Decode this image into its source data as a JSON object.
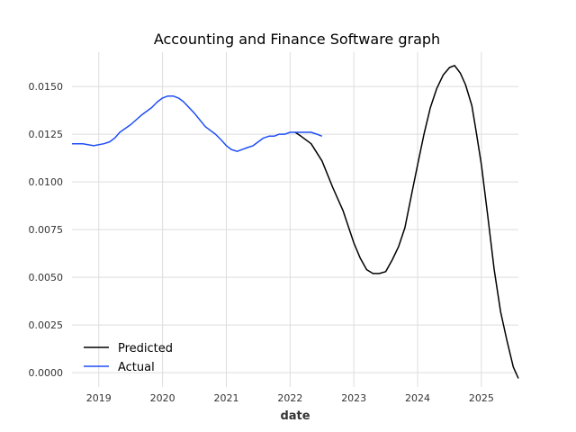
{
  "chart_data": {
    "type": "line",
    "title": "Accounting and Finance Software graph",
    "xlabel": "date",
    "ylabel": "",
    "xlim": [
      2018.58,
      2025.58
    ],
    "ylim": [
      -0.00075,
      0.0168
    ],
    "grid": true,
    "legend_position": "bottom-left",
    "x_ticks": [
      2019,
      2020,
      2021,
      2022,
      2023,
      2024,
      2025
    ],
    "x_tick_labels": [
      "2019",
      "2020",
      "2021",
      "2022",
      "2023",
      "2024",
      "2025"
    ],
    "y_ticks": [
      0.0,
      0.0025,
      0.005,
      0.0075,
      0.01,
      0.0125,
      0.015
    ],
    "y_tick_labels": [
      "0.0000",
      "0.0025",
      "0.0050",
      "0.0075",
      "0.0100",
      "0.0125",
      "0.0150"
    ],
    "series": [
      {
        "name": "Predicted",
        "color": "#000000",
        "x": [
          2022.08,
          2022.17,
          2022.33,
          2022.5,
          2022.67,
          2022.83,
          2023.0,
          2023.1,
          2023.2,
          2023.3,
          2023.4,
          2023.5,
          2023.6,
          2023.7,
          2023.8,
          2023.92,
          2024.0,
          2024.1,
          2024.2,
          2024.3,
          2024.4,
          2024.5,
          2024.58,
          2024.67,
          2024.75,
          2024.85,
          2024.92,
          2025.0,
          2025.1,
          2025.2,
          2025.3,
          2025.4,
          2025.5,
          2025.58
        ],
        "y": [
          0.0126,
          0.0124,
          0.012,
          0.0111,
          0.0097,
          0.0085,
          0.0068,
          0.006,
          0.0054,
          0.0052,
          0.0052,
          0.0053,
          0.0059,
          0.0066,
          0.0076,
          0.0096,
          0.0109,
          0.0125,
          0.0139,
          0.0149,
          0.0156,
          0.016,
          0.0161,
          0.0157,
          0.0151,
          0.014,
          0.0126,
          0.0109,
          0.0082,
          0.0054,
          0.0032,
          0.0017,
          0.0003,
          -0.0003
        ]
      },
      {
        "name": "Actual",
        "color": "#1f4ef5",
        "x": [
          2018.58,
          2018.75,
          2018.92,
          2019.08,
          2019.17,
          2019.25,
          2019.33,
          2019.5,
          2019.67,
          2019.83,
          2019.92,
          2020.0,
          2020.08,
          2020.17,
          2020.25,
          2020.33,
          2020.5,
          2020.67,
          2020.83,
          2020.92,
          2021.0,
          2021.08,
          2021.17,
          2021.25,
          2021.33,
          2021.42,
          2021.5,
          2021.58,
          2021.67,
          2021.75,
          2021.83,
          2021.92,
          2022.0,
          2022.08,
          2022.17,
          2022.25,
          2022.33,
          2022.42,
          2022.5
        ],
        "y": [
          0.012,
          0.012,
          0.0119,
          0.012,
          0.0121,
          0.0123,
          0.0126,
          0.013,
          0.0135,
          0.0139,
          0.0142,
          0.0144,
          0.0145,
          0.0145,
          0.0144,
          0.0142,
          0.0136,
          0.0129,
          0.0125,
          0.0122,
          0.0119,
          0.0117,
          0.0116,
          0.0117,
          0.0118,
          0.0119,
          0.0121,
          0.0123,
          0.0124,
          0.0124,
          0.0125,
          0.0125,
          0.0126,
          0.0126,
          0.0126,
          0.0126,
          0.0126,
          0.0125,
          0.0124
        ]
      }
    ]
  }
}
